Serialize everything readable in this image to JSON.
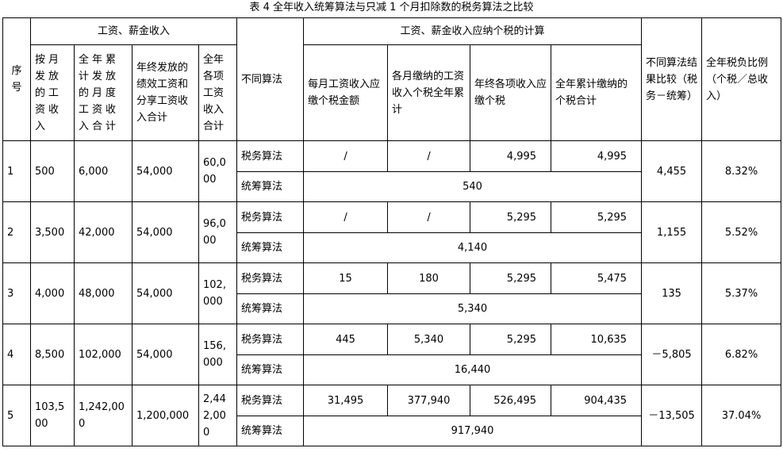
{
  "title": "表 4   全年收入统筹算法与只减 1 个月扣除数的税务算法之比较",
  "header": {
    "seq": "序号",
    "income_group": "工资、薪金收入",
    "income_cols": [
      "按月发放的工资收入",
      "全年累计发放的月度工资收入合计",
      "年终发放的绩效工资和分享工资收入合计",
      "全年各项工资收入合计"
    ],
    "method": "不同算法",
    "tax_group": "工资、薪金收入应纳个税的计算",
    "tax_cols": [
      "每月工资收入应缴个税金额",
      "各月缴纳的工资收入个税全年累计",
      "年终各项收入应缴个税",
      "全年累计缴纳的个税合计"
    ],
    "compare": "不同算法结果比较（税务－统筹）",
    "ratio": "全年税负比例（个税／总收入）"
  },
  "rows": [
    {
      "seq": "1",
      "monthly": "500",
      "annual_monthly": "6,000",
      "year_end": "54,000",
      "total": "60,000",
      "tax_method": "税务算法",
      "t1": "/",
      "t2": "/",
      "t3": "4,995",
      "t4": "4,995",
      "overall_method": "统筹算法",
      "overall": "540",
      "compare": "4,455",
      "ratio": "8.32%"
    },
    {
      "seq": "2",
      "monthly": "3,500",
      "annual_monthly": "42,000",
      "year_end": "54,000",
      "total": "96,000",
      "tax_method": "税务算法",
      "t1": "/",
      "t2": "/",
      "t3": "5,295",
      "t4": "5,295",
      "overall_method": "统筹算法",
      "overall": "4,140",
      "compare": "1,155",
      "ratio": "5.52%"
    },
    {
      "seq": "3",
      "monthly": "4,000",
      "annual_monthly": "48,000",
      "year_end": "54,000",
      "total": "102,000",
      "tax_method": "税务算法",
      "t1": "15",
      "t2": "180",
      "t3": "5,295",
      "t4": "5,475",
      "overall_method": "统筹算法",
      "overall": "5,340",
      "compare": "135",
      "ratio": "5.37%"
    },
    {
      "seq": "4",
      "monthly": "8,500",
      "annual_monthly": "102,000",
      "year_end": "54,000",
      "total": "156,000",
      "tax_method": "税务算法",
      "t1": "445",
      "t2": "5,340",
      "t3": "5,295",
      "t4": "10,635",
      "overall_method": "统筹算法",
      "overall": "16,440",
      "compare": "－5,805",
      "ratio": "6.82%"
    },
    {
      "seq": "5",
      "monthly": "103,500",
      "annual_monthly": "1,242,000",
      "year_end": "1,200,000",
      "total": "2,442,000",
      "tax_method": "税务算法",
      "t1": "31,495",
      "t2": "377,940",
      "t3": "526,495",
      "t4": "904,435",
      "overall_method": "统筹算法",
      "overall": "917,940",
      "compare": "－13,505",
      "ratio": "37.04%"
    }
  ]
}
